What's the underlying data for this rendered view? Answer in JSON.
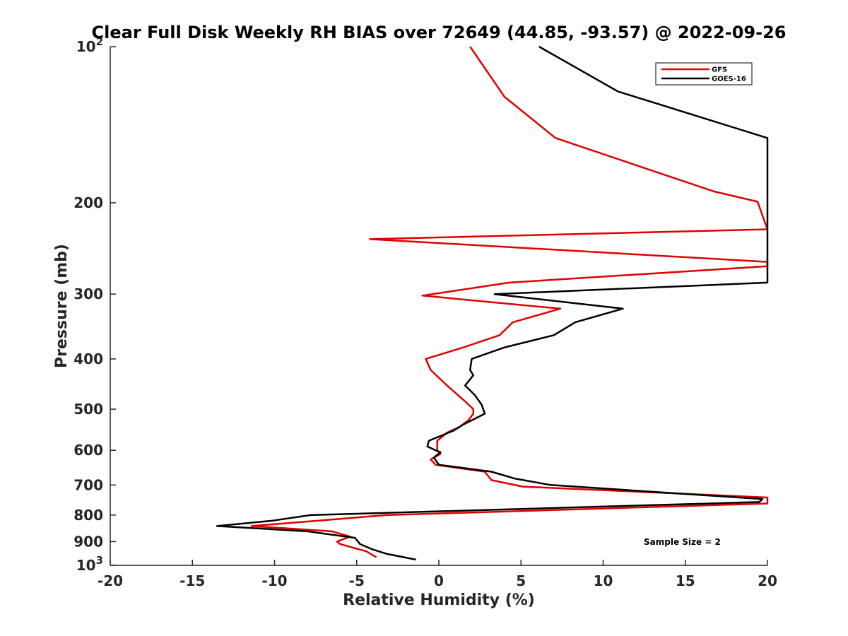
{
  "chart_data": {
    "type": "line",
    "title": "Clear Full Disk Weekly RH BIAS over 72649 (44.85, -93.57) @ 2022-09-26",
    "xlabel": "Relative Humidity (%)",
    "ylabel": "Pressure (mb)",
    "xlim": [
      -20,
      20
    ],
    "ylim": [
      100,
      1000
    ],
    "y_scale": "log",
    "y_reversed": true,
    "grid": false,
    "legend_position": "top-right",
    "x_ticks": [
      -20,
      -15,
      -10,
      -5,
      0,
      5,
      10,
      15,
      20
    ],
    "x_tick_labels": [
      "-20",
      "-15",
      "-10",
      "-5",
      "0",
      "5",
      "10",
      "15",
      "20"
    ],
    "y_ticks": [
      100,
      200,
      300,
      400,
      500,
      600,
      700,
      800,
      900,
      1000
    ],
    "y_tick_labels": [
      {
        "base": "10",
        "exp": "2"
      },
      {
        "base": "200",
        "exp": ""
      },
      {
        "base": "300",
        "exp": ""
      },
      {
        "base": "400",
        "exp": ""
      },
      {
        "base": "500",
        "exp": ""
      },
      {
        "base": "600",
        "exp": ""
      },
      {
        "base": "700",
        "exp": ""
      },
      {
        "base": "800",
        "exp": ""
      },
      {
        "base": "900",
        "exp": ""
      },
      {
        "base": "10",
        "exp": "3"
      }
    ],
    "annotation": "Sample Size = 2",
    "series": [
      {
        "name": "GFS",
        "color": "#e00000",
        "points": [
          [
            1.9,
            100
          ],
          [
            4.0,
            125
          ],
          [
            7.1,
            150
          ],
          [
            16.7,
            190
          ],
          [
            19.4,
            199
          ],
          [
            20.0,
            225
          ],
          [
            -4.2,
            235
          ],
          [
            20.0,
            260
          ],
          [
            20.0,
            265
          ],
          [
            4.3,
            285
          ],
          [
            -1.0,
            302
          ],
          [
            7.4,
            320
          ],
          [
            4.5,
            340
          ],
          [
            3.7,
            360
          ],
          [
            1.5,
            380
          ],
          [
            -0.8,
            400
          ],
          [
            -0.5,
            420
          ],
          [
            0.5,
            450
          ],
          [
            1.5,
            480
          ],
          [
            2.1,
            500
          ],
          [
            2.1,
            510
          ],
          [
            1.8,
            525
          ],
          [
            1.3,
            540
          ],
          [
            0.5,
            555
          ],
          [
            -0.1,
            575
          ],
          [
            -0.1,
            600
          ],
          [
            0.1,
            610
          ],
          [
            -0.5,
            625
          ],
          [
            -0.2,
            640
          ],
          [
            2.8,
            660
          ],
          [
            3.2,
            685
          ],
          [
            5.1,
            705
          ],
          [
            20.0,
            740
          ],
          [
            20.0,
            760
          ],
          [
            -3.2,
            800
          ],
          [
            -11.4,
            840
          ],
          [
            -6.5,
            860
          ],
          [
            -5.4,
            880
          ],
          [
            -6.2,
            900
          ],
          [
            -6.0,
            910
          ],
          [
            -4.4,
            940
          ],
          [
            -3.8,
            965
          ]
        ]
      },
      {
        "name": "GOES-16",
        "color": "#000000",
        "points": [
          [
            6.1,
            100
          ],
          [
            10.9,
            122
          ],
          [
            20.0,
            150
          ],
          [
            20.0,
            285
          ],
          [
            3.4,
            300
          ],
          [
            11.2,
            320
          ],
          [
            8.3,
            340
          ],
          [
            7.0,
            360
          ],
          [
            4.0,
            380
          ],
          [
            2.0,
            400
          ],
          [
            1.9,
            420
          ],
          [
            2.1,
            430
          ],
          [
            1.6,
            450
          ],
          [
            2.2,
            470
          ],
          [
            2.6,
            490
          ],
          [
            2.8,
            510
          ],
          [
            1.5,
            535
          ],
          [
            0.9,
            550
          ],
          [
            -0.6,
            575
          ],
          [
            -0.7,
            590
          ],
          [
            -0.2,
            600
          ],
          [
            0.1,
            605
          ],
          [
            -0.3,
            620
          ],
          [
            0.0,
            640
          ],
          [
            3.2,
            660
          ],
          [
            4.6,
            680
          ],
          [
            6.8,
            700
          ],
          [
            19.7,
            745
          ],
          [
            19.5,
            755
          ],
          [
            -7.8,
            800
          ],
          [
            -10.1,
            820
          ],
          [
            -13.5,
            840
          ],
          [
            -8.0,
            860
          ],
          [
            -5.1,
            885
          ],
          [
            -4.8,
            910
          ],
          [
            -4.1,
            930
          ],
          [
            -3.2,
            950
          ],
          [
            -1.4,
            975
          ]
        ]
      }
    ]
  }
}
